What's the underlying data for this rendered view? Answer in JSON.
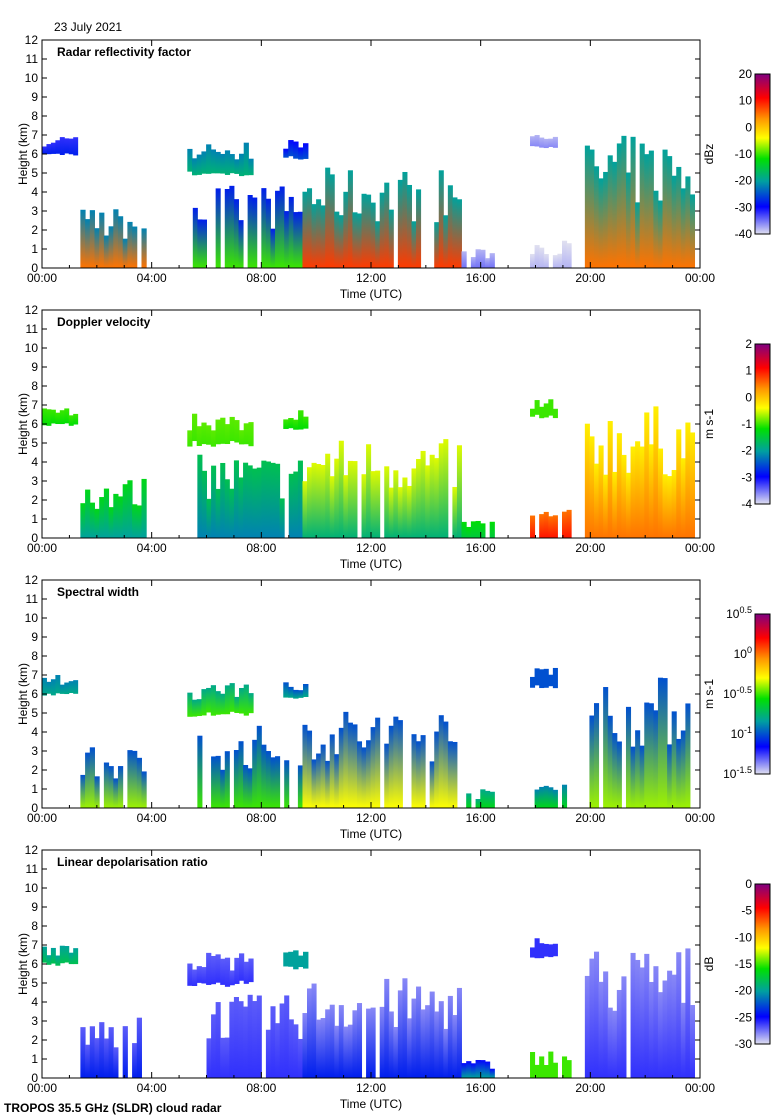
{
  "date": "23 July 2021",
  "footer": "TROPOS 35.5 GHz (SLDR) cloud radar",
  "chart_data": [
    {
      "type": "heatmap",
      "title": "Radar reflectivity factor",
      "xlabel": "Time (UTC)",
      "ylabel": "Height (km)",
      "xticks": [
        "00:00",
        "04:00",
        "08:00",
        "12:00",
        "16:00",
        "20:00",
        "00:00"
      ],
      "xlim": [
        0,
        24
      ],
      "ylim": [
        0,
        12
      ],
      "yticks": [
        "0",
        "1",
        "2",
        "3",
        "4",
        "5",
        "6",
        "7",
        "8",
        "9",
        "10",
        "11",
        "12"
      ],
      "colorbar": {
        "label": "dBz",
        "range": [
          -40,
          20
        ],
        "ticks": [
          "20",
          "10",
          "0",
          "-10",
          "-20",
          "-30",
          "-40"
        ]
      },
      "layers": [
        [
          -28,
          -32
        ],
        [
          5,
          -22
        ],
        [
          -18,
          -22
        ],
        [
          -25,
          -30
        ],
        [
          -10,
          -28
        ],
        [
          8,
          -20
        ],
        [
          -35,
          -38
        ],
        [
          -38,
          -40
        ],
        [
          5,
          -20
        ],
        [
          -36,
          -38
        ]
      ]
    },
    {
      "type": "heatmap",
      "title": "Doppler velocity",
      "xlabel": "Time (UTC)",
      "ylabel": "Height (km)",
      "xticks": [
        "00:00",
        "04:00",
        "08:00",
        "12:00",
        "16:00",
        "20:00",
        "00:00"
      ],
      "xlim": [
        0,
        24
      ],
      "ylim": [
        0,
        12
      ],
      "yticks": [
        "0",
        "1",
        "2",
        "3",
        "4",
        "5",
        "6",
        "7",
        "8",
        "9",
        "10",
        "11",
        "12"
      ],
      "colorbar": {
        "label": "m s-1",
        "range": [
          -4,
          2
        ],
        "ticks": [
          "2",
          "1",
          "0",
          "-1",
          "-2",
          "-3",
          "-4"
        ]
      },
      "layers": [
        [
          -1.2,
          -1.0
        ],
        [
          -2.0,
          -1.3
        ],
        [
          -1.0,
          -0.9
        ],
        [
          -1.2,
          -1.0
        ],
        [
          -2.2,
          -1.6
        ],
        [
          -1.8,
          -0.5
        ],
        [
          -1.5,
          -1.2
        ],
        [
          1.0,
          0.5
        ],
        [
          0.5,
          -0.3
        ],
        [
          -1.0,
          -1.0
        ]
      ]
    },
    {
      "type": "heatmap",
      "title": "Spectral width",
      "xlabel": "Time (UTC)",
      "ylabel": "Height (km)",
      "xticks": [
        "00:00",
        "04:00",
        "08:00",
        "12:00",
        "16:00",
        "20:00",
        "00:00"
      ],
      "xlim": [
        0,
        24
      ],
      "ylim": [
        0,
        12
      ],
      "yticks": [
        "0",
        "1",
        "2",
        "3",
        "4",
        "5",
        "6",
        "7",
        "8",
        "9",
        "10",
        "11",
        "12"
      ],
      "colorbar": {
        "label": "m s-1",
        "range": [
          -1.5,
          0.5
        ],
        "scale": "log10",
        "ticks": [
          "10^0.5",
          "10^0",
          "10^-0.5",
          "10^-1",
          "10^-1.5"
        ]
      },
      "layers": [
        [
          -0.8,
          -0.9
        ],
        [
          -0.4,
          -1.0
        ],
        [
          -0.5,
          -0.8
        ],
        [
          -0.8,
          -1.0
        ],
        [
          -0.5,
          -1.0
        ],
        [
          -0.3,
          -1.0
        ],
        [
          -0.6,
          -0.8
        ],
        [
          -0.6,
          -0.9
        ],
        [
          -0.4,
          -1.0
        ],
        [
          -1.0,
          -1.0
        ]
      ]
    },
    {
      "type": "heatmap",
      "title": "Linear depolarisation ratio",
      "xlabel": "Time (UTC)",
      "ylabel": "Height (km)",
      "xticks": [
        "00:00",
        "04:00",
        "08:00",
        "12:00",
        "16:00",
        "20:00",
        "00:00"
      ],
      "xlim": [
        0,
        24
      ],
      "ylim": [
        0,
        12
      ],
      "yticks": [
        "0",
        "1",
        "2",
        "3",
        "4",
        "5",
        "6",
        "7",
        "8",
        "9",
        "10",
        "11",
        "12"
      ],
      "colorbar": {
        "label": "dB",
        "range": [
          -30,
          0
        ],
        "ticks": [
          "0",
          "-5",
          "-10",
          "-15",
          "-20",
          "-25",
          "-30"
        ]
      },
      "layers": [
        [
          -18,
          -20
        ],
        [
          -24,
          -27
        ],
        [
          -26,
          -27
        ],
        [
          -20,
          -20
        ],
        [
          -26,
          -27
        ],
        [
          -24,
          -28
        ],
        [
          -20,
          -25
        ],
        [
          -15,
          -15
        ],
        [
          -26,
          -28
        ],
        [
          -26,
          -26
        ]
      ]
    }
  ],
  "cloud_segments_hours_km": [
    [
      0.0,
      1.3,
      5.9,
      7.0
    ],
    [
      1.4,
      3.8,
      0.0,
      3.2
    ],
    [
      5.3,
      7.7,
      4.8,
      6.6
    ],
    [
      8.8,
      9.7,
      5.7,
      6.8
    ],
    [
      5.5,
      9.5,
      0.0,
      4.4
    ],
    [
      9.5,
      15.3,
      0.0,
      5.3
    ],
    [
      15.3,
      16.5,
      0.0,
      1.0
    ],
    [
      17.8,
      19.3,
      0.0,
      1.5
    ],
    [
      19.8,
      23.8,
      0.0,
      7.0
    ],
    [
      17.8,
      18.8,
      6.3,
      7.4
    ]
  ]
}
